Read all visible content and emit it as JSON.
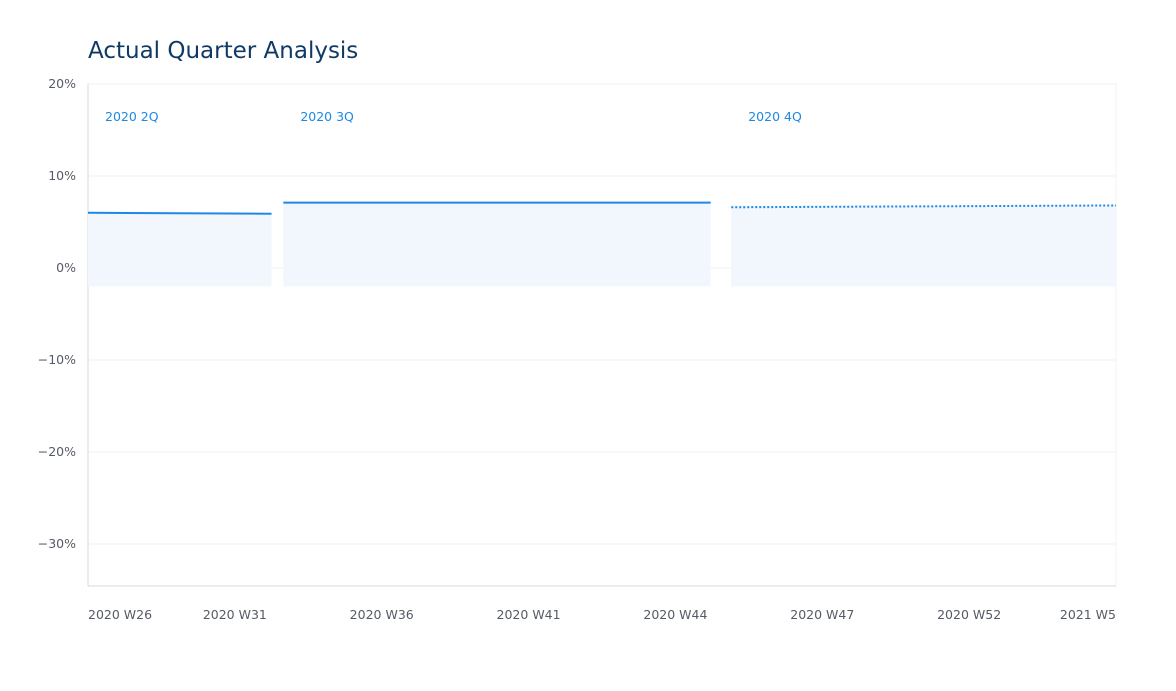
{
  "chart_data": {
    "type": "line",
    "title": "Actual Quarter Analysis",
    "xlabel": "",
    "ylabel": "",
    "y_ticks": [
      "20%",
      "10%",
      "0%",
      "−10%",
      "−20%",
      "−30%"
    ],
    "y_tick_values": [
      20,
      10,
      0,
      -10,
      -20,
      -30
    ],
    "ylim": [
      -35,
      20
    ],
    "x_ticks": [
      "2020 W26",
      "2020 W31",
      "2020 W36",
      "2020 W41",
      "2020 W44",
      "2020 W47",
      "2020 W52",
      "2021 W5"
    ],
    "grid": true,
    "quarters": [
      {
        "label": "2020 2Q",
        "start_tick": 0.0,
        "end_tick": 1.25,
        "value_start": 6.0,
        "value_end": 5.9,
        "style": "solid",
        "band_low": -2,
        "band_high": 6.0
      },
      {
        "label": "2020 3Q",
        "start_tick": 1.33,
        "end_tick": 4.24,
        "value_start": 7.1,
        "value_end": 7.1,
        "style": "solid",
        "band_low": -2,
        "band_high": 7.1
      },
      {
        "label": "2020 4Q",
        "start_tick": 4.38,
        "end_tick": 7.0,
        "value_start": 6.6,
        "value_end": 6.8,
        "style": "dotted",
        "band_low": -2,
        "band_high": 6.8
      }
    ],
    "colors": {
      "line": "#1e88e5",
      "band": "#f2f7fd",
      "grid": "#eef0f3",
      "axis": "#d5d9de",
      "title": "#0f3a66"
    }
  }
}
